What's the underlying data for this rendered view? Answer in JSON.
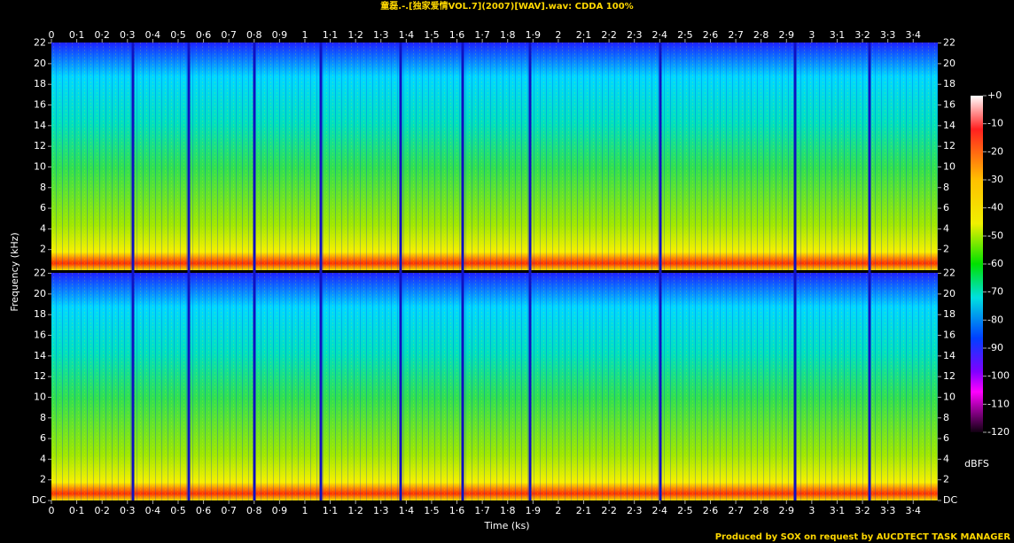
{
  "chart_data": {
    "type": "spectrogram",
    "title": "童磊.-.[独家爱情VOL.7](2007)[WAV].wav: CDDA 100%",
    "xlabel": "Time (ks)",
    "ylabel": "Frequency (kHz)",
    "xlim": [
      0,
      3.497
    ],
    "xticks": [
      0,
      {
        "value": 0.1,
        "label": "0·1"
      },
      {
        "value": 0.2,
        "label": "0·2"
      },
      {
        "value": 0.3,
        "label": "0·3"
      },
      {
        "value": 0.4,
        "label": "0·4"
      },
      {
        "value": 0.5,
        "label": "0·5"
      },
      {
        "value": 0.6,
        "label": "0·6"
      },
      {
        "value": 0.7,
        "label": "0·7"
      },
      {
        "value": 0.8,
        "label": "0·8"
      },
      {
        "value": 0.9,
        "label": "0·9"
      },
      1,
      {
        "value": 1.1,
        "label": "1·1"
      },
      {
        "value": 1.2,
        "label": "1·2"
      },
      {
        "value": 1.3,
        "label": "1·3"
      },
      {
        "value": 1.4,
        "label": "1·4"
      },
      {
        "value": 1.5,
        "label": "1·5"
      },
      {
        "value": 1.6,
        "label": "1·6"
      },
      {
        "value": 1.7,
        "label": "1·7"
      },
      {
        "value": 1.8,
        "label": "1·8"
      },
      {
        "value": 1.9,
        "label": "1·9"
      },
      2,
      {
        "value": 2.1,
        "label": "2·1"
      },
      {
        "value": 2.2,
        "label": "2·2"
      },
      {
        "value": 2.3,
        "label": "2·3"
      },
      {
        "value": 2.4,
        "label": "2·4"
      },
      {
        "value": 2.5,
        "label": "2·5"
      },
      {
        "value": 2.6,
        "label": "2·6"
      },
      {
        "value": 2.7,
        "label": "2·7"
      },
      {
        "value": 2.8,
        "label": "2·8"
      },
      {
        "value": 2.9,
        "label": "2·9"
      },
      3,
      {
        "value": 3.1,
        "label": "3·1"
      },
      {
        "value": 3.2,
        "label": "3·2"
      },
      {
        "value": 3.3,
        "label": "3·3"
      },
      {
        "value": 3.4,
        "label": "3·4"
      }
    ],
    "ylim": [
      0,
      22.05
    ],
    "panels": [
      {
        "yticks": [
          2,
          4,
          6,
          8,
          10,
          12,
          14,
          16,
          18,
          20,
          22
        ]
      },
      {
        "yticks": [
          {
            "value": 0,
            "label": "DC"
          },
          2,
          4,
          6,
          8,
          10,
          12,
          14,
          16,
          18,
          20,
          22
        ]
      }
    ],
    "colorbar": {
      "label": "dBFS",
      "lim": [
        -120,
        0
      ],
      "ticks": [
        {
          "value": 0,
          "label": "+0"
        },
        -10,
        -20,
        -30,
        -40,
        -50,
        -60,
        -70,
        -80,
        -90,
        -100,
        -110,
        -120
      ]
    },
    "footer": "Produced by SOX on request by AUCDTECT TASK MANAGER"
  }
}
